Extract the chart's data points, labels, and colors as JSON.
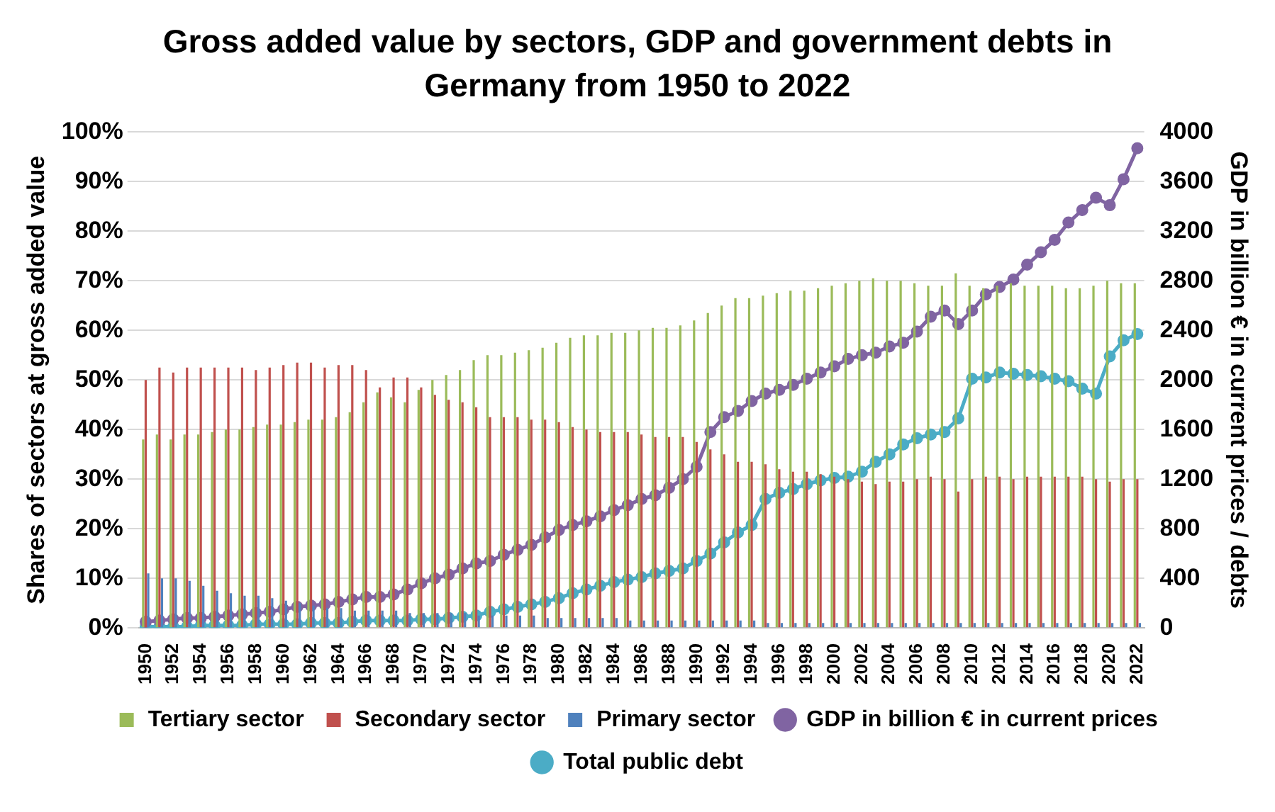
{
  "chart_data": {
    "type": "bar",
    "title": "Gross added value by sectors, GDP and government debts in Germany from 1950 to 2022",
    "ylabel": "Shares of sectors at gross added value",
    "y2label": "GDP in billion € in current prices / debts",
    "categories": [
      "1950",
      null,
      "1952",
      null,
      "1954",
      null,
      "1956",
      null,
      "1958",
      null,
      "1960",
      null,
      "1962",
      null,
      "1964",
      null,
      "1966",
      null,
      "1968",
      null,
      "1970",
      null,
      "1972",
      null,
      "1974",
      null,
      "1976",
      null,
      "1978",
      null,
      "1980",
      null,
      "1982",
      null,
      "1984",
      null,
      "1986",
      null,
      "1988",
      null,
      "1990",
      null,
      "1992",
      null,
      "1994",
      null,
      "1996",
      null,
      "1998",
      null,
      "2000",
      null,
      "2002",
      null,
      "2004",
      null,
      "2006",
      null,
      "2008",
      null,
      "2010",
      null,
      "2012",
      null,
      "2014",
      null,
      "2016",
      null,
      "2018",
      null,
      "2020",
      null,
      "2022"
    ],
    "series": [
      {
        "name": "Tertiary sector",
        "color": "#9bbb59",
        "values": [
          38,
          39,
          38,
          39,
          39,
          39.5,
          40,
          40,
          40.5,
          41,
          41,
          41.5,
          42,
          42,
          42.5,
          43.5,
          45.5,
          47.5,
          46.5,
          45.5,
          48,
          50,
          51,
          52,
          54,
          55,
          55,
          55.5,
          56,
          56.5,
          57.5,
          58.5,
          59,
          59,
          59.5,
          59.5,
          60,
          60.5,
          60.5,
          61,
          62,
          63.5,
          65,
          66.5,
          66.5,
          67,
          67.5,
          68,
          68,
          68.5,
          69,
          69.5,
          70,
          70.5,
          70,
          70,
          69.5,
          69,
          69,
          71.5,
          69,
          68.5,
          69,
          69.5,
          69,
          69,
          69,
          68.5,
          68.5,
          69,
          70,
          69.5,
          69.5
        ]
      },
      {
        "name": "Secondary sector",
        "color": "#c0504d",
        "values": [
          50,
          52.5,
          51.5,
          52.5,
          52.5,
          52.5,
          52.5,
          52.5,
          52,
          52.5,
          53,
          53.5,
          53.5,
          52.5,
          53,
          53,
          52,
          48.5,
          50.5,
          50.5,
          48.5,
          47,
          46,
          45.5,
          44.5,
          42.5,
          42.5,
          42.5,
          42,
          42,
          41.5,
          40.5,
          40,
          39.5,
          39.5,
          39.5,
          39,
          38.5,
          38.5,
          38.5,
          37.5,
          36,
          35,
          33.5,
          33.5,
          33,
          32,
          31.5,
          31.5,
          31,
          30.5,
          30,
          29.5,
          29,
          29.5,
          29.5,
          30,
          30.5,
          30,
          27.5,
          30,
          30.5,
          30.5,
          30,
          30.5,
          30.5,
          30.5,
          30.5,
          30.5,
          30,
          29.5,
          30,
          30
        ]
      },
      {
        "name": "Primary sector",
        "color": "#4f81bd",
        "values": [
          11,
          10,
          10,
          9.5,
          8.5,
          7.5,
          7,
          6.5,
          6.5,
          6,
          5.5,
          5,
          4.5,
          4,
          4,
          3.5,
          3.5,
          3.5,
          3.5,
          3,
          3,
          3,
          3,
          3,
          2.5,
          2.5,
          2.5,
          2.5,
          2.5,
          2,
          2,
          2,
          2,
          2,
          2,
          1.5,
          1.5,
          1.5,
          1.5,
          1.5,
          1.5,
          1.5,
          1.5,
          1.5,
          1.5,
          1,
          1,
          1,
          1,
          1,
          1,
          1,
          1,
          1,
          1,
          1,
          1,
          1,
          1,
          1,
          1,
          1,
          1,
          1,
          1,
          1,
          1,
          1,
          1,
          1,
          1,
          1,
          1
        ]
      },
      {
        "name": "GDP in billion € in current prices",
        "type": "line",
        "axis": "y2",
        "color": "#8064a2",
        "values": [
          50,
          60,
          70,
          80,
          80,
          90,
          100,
          110,
          120,
          130,
          150,
          170,
          180,
          190,
          210,
          230,
          250,
          250,
          270,
          310,
          360,
          400,
          430,
          480,
          520,
          540,
          590,
          630,
          670,
          730,
          790,
          830,
          860,
          900,
          950,
          990,
          1040,
          1070,
          1130,
          1200,
          1300,
          1580,
          1700,
          1750,
          1830,
          1890,
          1920,
          1960,
          2010,
          2060,
          2110,
          2170,
          2200,
          2220,
          2270,
          2300,
          2390,
          2510,
          2560,
          2450,
          2560,
          2690,
          2750,
          2810,
          2930,
          3030,
          3130,
          3270,
          3370,
          3470,
          3410,
          3620,
          3870
        ]
      },
      {
        "name": "Total public debt",
        "type": "line",
        "axis": "y2",
        "color": "#4bacc6",
        "values": [
          10,
          10,
          10,
          10,
          20,
          20,
          20,
          20,
          30,
          30,
          30,
          30,
          40,
          40,
          40,
          50,
          60,
          60,
          60,
          60,
          70,
          70,
          80,
          90,
          100,
          130,
          150,
          170,
          190,
          210,
          240,
          280,
          310,
          340,
          370,
          390,
          410,
          440,
          460,
          480,
          540,
          600,
          690,
          770,
          830,
          1040,
          1090,
          1120,
          1160,
          1190,
          1210,
          1220,
          1260,
          1340,
          1400,
          1480,
          1530,
          1560,
          1580,
          1690,
          2010,
          2020,
          2060,
          2050,
          2040,
          2030,
          2010,
          1990,
          1930,
          1890,
          2190,
          2320,
          2370
        ]
      }
    ],
    "ylim": [
      0,
      100
    ],
    "yticks": [
      {
        "value": 0,
        "label": "0%"
      },
      {
        "value": 10,
        "label": "10%"
      },
      {
        "value": 20,
        "label": "20%"
      },
      {
        "value": 30,
        "label": "30%"
      },
      {
        "value": 40,
        "label": "40%"
      },
      {
        "value": 50,
        "label": "50%"
      },
      {
        "value": 60,
        "label": "60%"
      },
      {
        "value": 70,
        "label": "70%"
      },
      {
        "value": 80,
        "label": "80%"
      },
      {
        "value": 90,
        "label": "90%"
      },
      {
        "value": 100,
        "label": "100%"
      }
    ],
    "y2lim": [
      0,
      4000
    ],
    "y2ticks": [
      0,
      400,
      800,
      1200,
      1600,
      2000,
      2400,
      2800,
      3200,
      3600,
      4000
    ],
    "grid": "y",
    "legend": "bottom",
    "marker": "circle",
    "line_style": "solid"
  }
}
